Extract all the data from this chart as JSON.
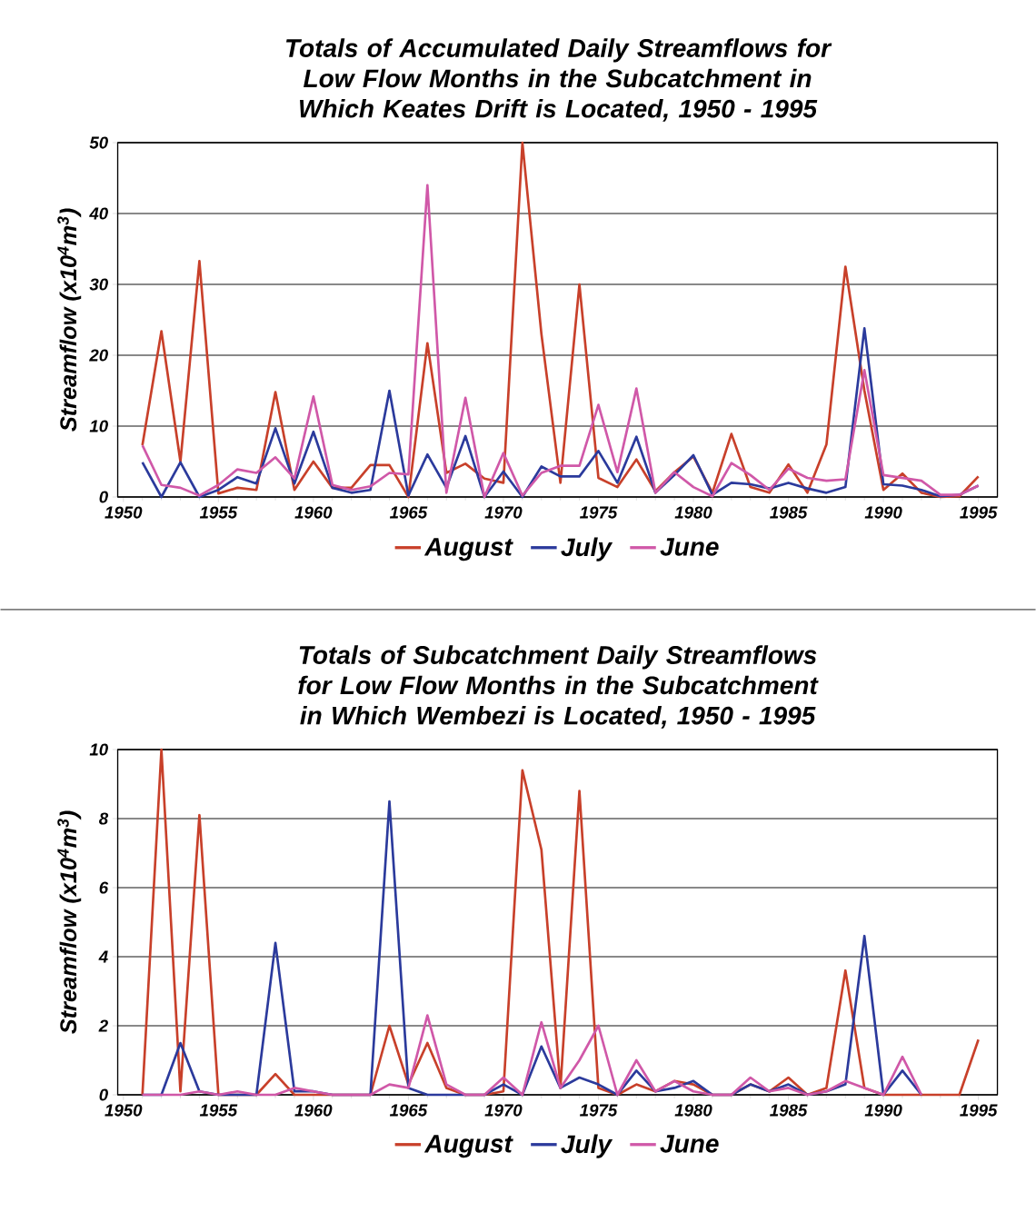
{
  "chart_data": [
    {
      "type": "line",
      "title": "Totals of Accumulated Daily Streamflows for Low Flow Months in the Subcatchment in Which Keates Drift is Located, 1950 - 1995",
      "ylabel": "Streamflow (x10$^{4}$m$^{3}$)",
      "x": [
        1951,
        1952,
        1953,
        1954,
        1955,
        1956,
        1957,
        1958,
        1959,
        1960,
        1961,
        1962,
        1963,
        1964,
        1965,
        1966,
        1967,
        1968,
        1969,
        1970,
        1971,
        1972,
        1973,
        1974,
        1975,
        1976,
        1977,
        1978,
        1979,
        1980,
        1981,
        1982,
        1983,
        1984,
        1985,
        1986,
        1987,
        1988,
        1989,
        1990,
        1991,
        1992,
        1993,
        1994,
        1995
      ],
      "xlim": [
        1949.7,
        1996
      ],
      "xticks": [
        1950,
        1955,
        1960,
        1965,
        1970,
        1975,
        1980,
        1985,
        1990,
        1995
      ],
      "ylim": [
        0,
        50
      ],
      "yticks": [
        0,
        10,
        20,
        30,
        40,
        50
      ],
      "grid": "y",
      "legend": "bottom",
      "line_style": "solid",
      "series": [
        {
          "name": "August",
          "color": "#c8402a",
          "values": [
            7.3,
            23.4,
            5,
            33.3,
            0.5,
            1.3,
            1,
            14.8,
            1,
            5,
            1.3,
            1.3,
            4.5,
            4.5,
            0,
            21.7,
            3.4,
            4.7,
            2.6,
            2,
            50,
            23,
            2,
            30,
            2.7,
            1.4,
            5.3,
            0.8,
            3.5,
            5.7,
            0.6,
            8.9,
            1.4,
            0.6,
            4.6,
            0.6,
            7.4,
            32.5,
            15,
            1,
            3.3,
            0.6,
            0,
            0.1,
            2.9
          ]
        },
        {
          "name": "July",
          "color": "#2b3a9c",
          "values": [
            4.9,
            0,
            4.9,
            0,
            1,
            2.8,
            1.9,
            9.7,
            1.9,
            9.2,
            1.3,
            0.6,
            1,
            15,
            0.2,
            6,
            1.3,
            8.6,
            0,
            3.6,
            0,
            4.3,
            2.9,
            2.9,
            6.5,
            2,
            8.5,
            0.6,
            3.1,
            5.9,
            0.3,
            2,
            1.8,
            1.2,
            2,
            1.2,
            0.6,
            1.4,
            23.8,
            1.8,
            1.6,
            1,
            0.1,
            0.3,
            1.6
          ]
        },
        {
          "name": "June",
          "color": "#d058a8",
          "values": [
            7.3,
            1.7,
            1.3,
            0.2,
            1.7,
            3.9,
            3.4,
            5.6,
            2.6,
            14.2,
            1.7,
            1,
            1.5,
            3.4,
            3.2,
            44,
            0.6,
            14,
            0,
            6.2,
            0.2,
            3.4,
            4.4,
            4.4,
            13,
            3.5,
            15.3,
            0.6,
            3.5,
            1.4,
            0.1,
            4.8,
            3.1,
            1,
            4,
            2.7,
            2.3,
            2.5,
            17.9,
            3.1,
            2.7,
            2.3,
            0.3,
            0.3,
            1.6
          ]
        }
      ]
    },
    {
      "type": "line",
      "title": "Totals of Subcatchment Daily Streamflows for Low Flow Months in the Subcatchment in Which Wembezi is Located, 1950 - 1995",
      "ylabel": "Streamflow (x10$^{4}$m$^{3}$)",
      "x": [
        1951,
        1952,
        1953,
        1954,
        1955,
        1956,
        1957,
        1958,
        1959,
        1960,
        1961,
        1962,
        1963,
        1964,
        1965,
        1966,
        1967,
        1968,
        1969,
        1970,
        1971,
        1972,
        1973,
        1974,
        1975,
        1976,
        1977,
        1978,
        1979,
        1980,
        1981,
        1982,
        1983,
        1984,
        1985,
        1986,
        1987,
        1988,
        1989,
        1990,
        1991,
        1992,
        1993,
        1994,
        1995
      ],
      "xlim": [
        1949.7,
        1996
      ],
      "xticks": [
        1950,
        1955,
        1960,
        1965,
        1970,
        1975,
        1980,
        1985,
        1990,
        1995
      ],
      "ylim": [
        0,
        10
      ],
      "yticks": [
        0,
        2,
        4,
        6,
        8,
        10
      ],
      "grid": "y",
      "legend": "bottom",
      "line_style": "solid",
      "series": [
        {
          "name": "August",
          "color": "#c8402a",
          "values": [
            0,
            10,
            0.1,
            8.1,
            0,
            0,
            0,
            0.6,
            0,
            0,
            0,
            0,
            0,
            2,
            0.3,
            1.5,
            0.2,
            0,
            0,
            0.1,
            9.4,
            7.1,
            0.2,
            8.8,
            0.2,
            0,
            0.3,
            0.1,
            0.4,
            0.3,
            0,
            0,
            0.3,
            0.1,
            0.5,
            0,
            0.2,
            3.6,
            0.2,
            0,
            0,
            0,
            0,
            0,
            1.6
          ]
        },
        {
          "name": "July",
          "color": "#2b3a9c",
          "values": [
            0,
            0,
            1.5,
            0.1,
            0,
            0,
            0,
            4.4,
            0.1,
            0.1,
            0,
            0,
            0,
            8.5,
            0.2,
            0,
            0,
            0,
            0,
            0.3,
            0,
            1.4,
            0.2,
            0.5,
            0.3,
            0,
            0.7,
            0.1,
            0.2,
            0.4,
            0,
            0,
            0.3,
            0.1,
            0.3,
            0,
            0.1,
            0.3,
            4.6,
            0,
            0.7,
            0,
            null,
            null,
            null
          ]
        },
        {
          "name": "June",
          "color": "#d058a8",
          "values": [
            0,
            0,
            0,
            0.1,
            0,
            0.1,
            0,
            0,
            0.2,
            0.1,
            0,
            0,
            0,
            0.3,
            0.2,
            2.3,
            0.3,
            0,
            0,
            0.5,
            0,
            2.1,
            0.2,
            1,
            2,
            0,
            1,
            0.1,
            0.4,
            0.1,
            0,
            0,
            0.5,
            0.1,
            0.2,
            0,
            0.1,
            0.4,
            0.2,
            0,
            1.1,
            0,
            null,
            null,
            null
          ]
        }
      ]
    }
  ]
}
